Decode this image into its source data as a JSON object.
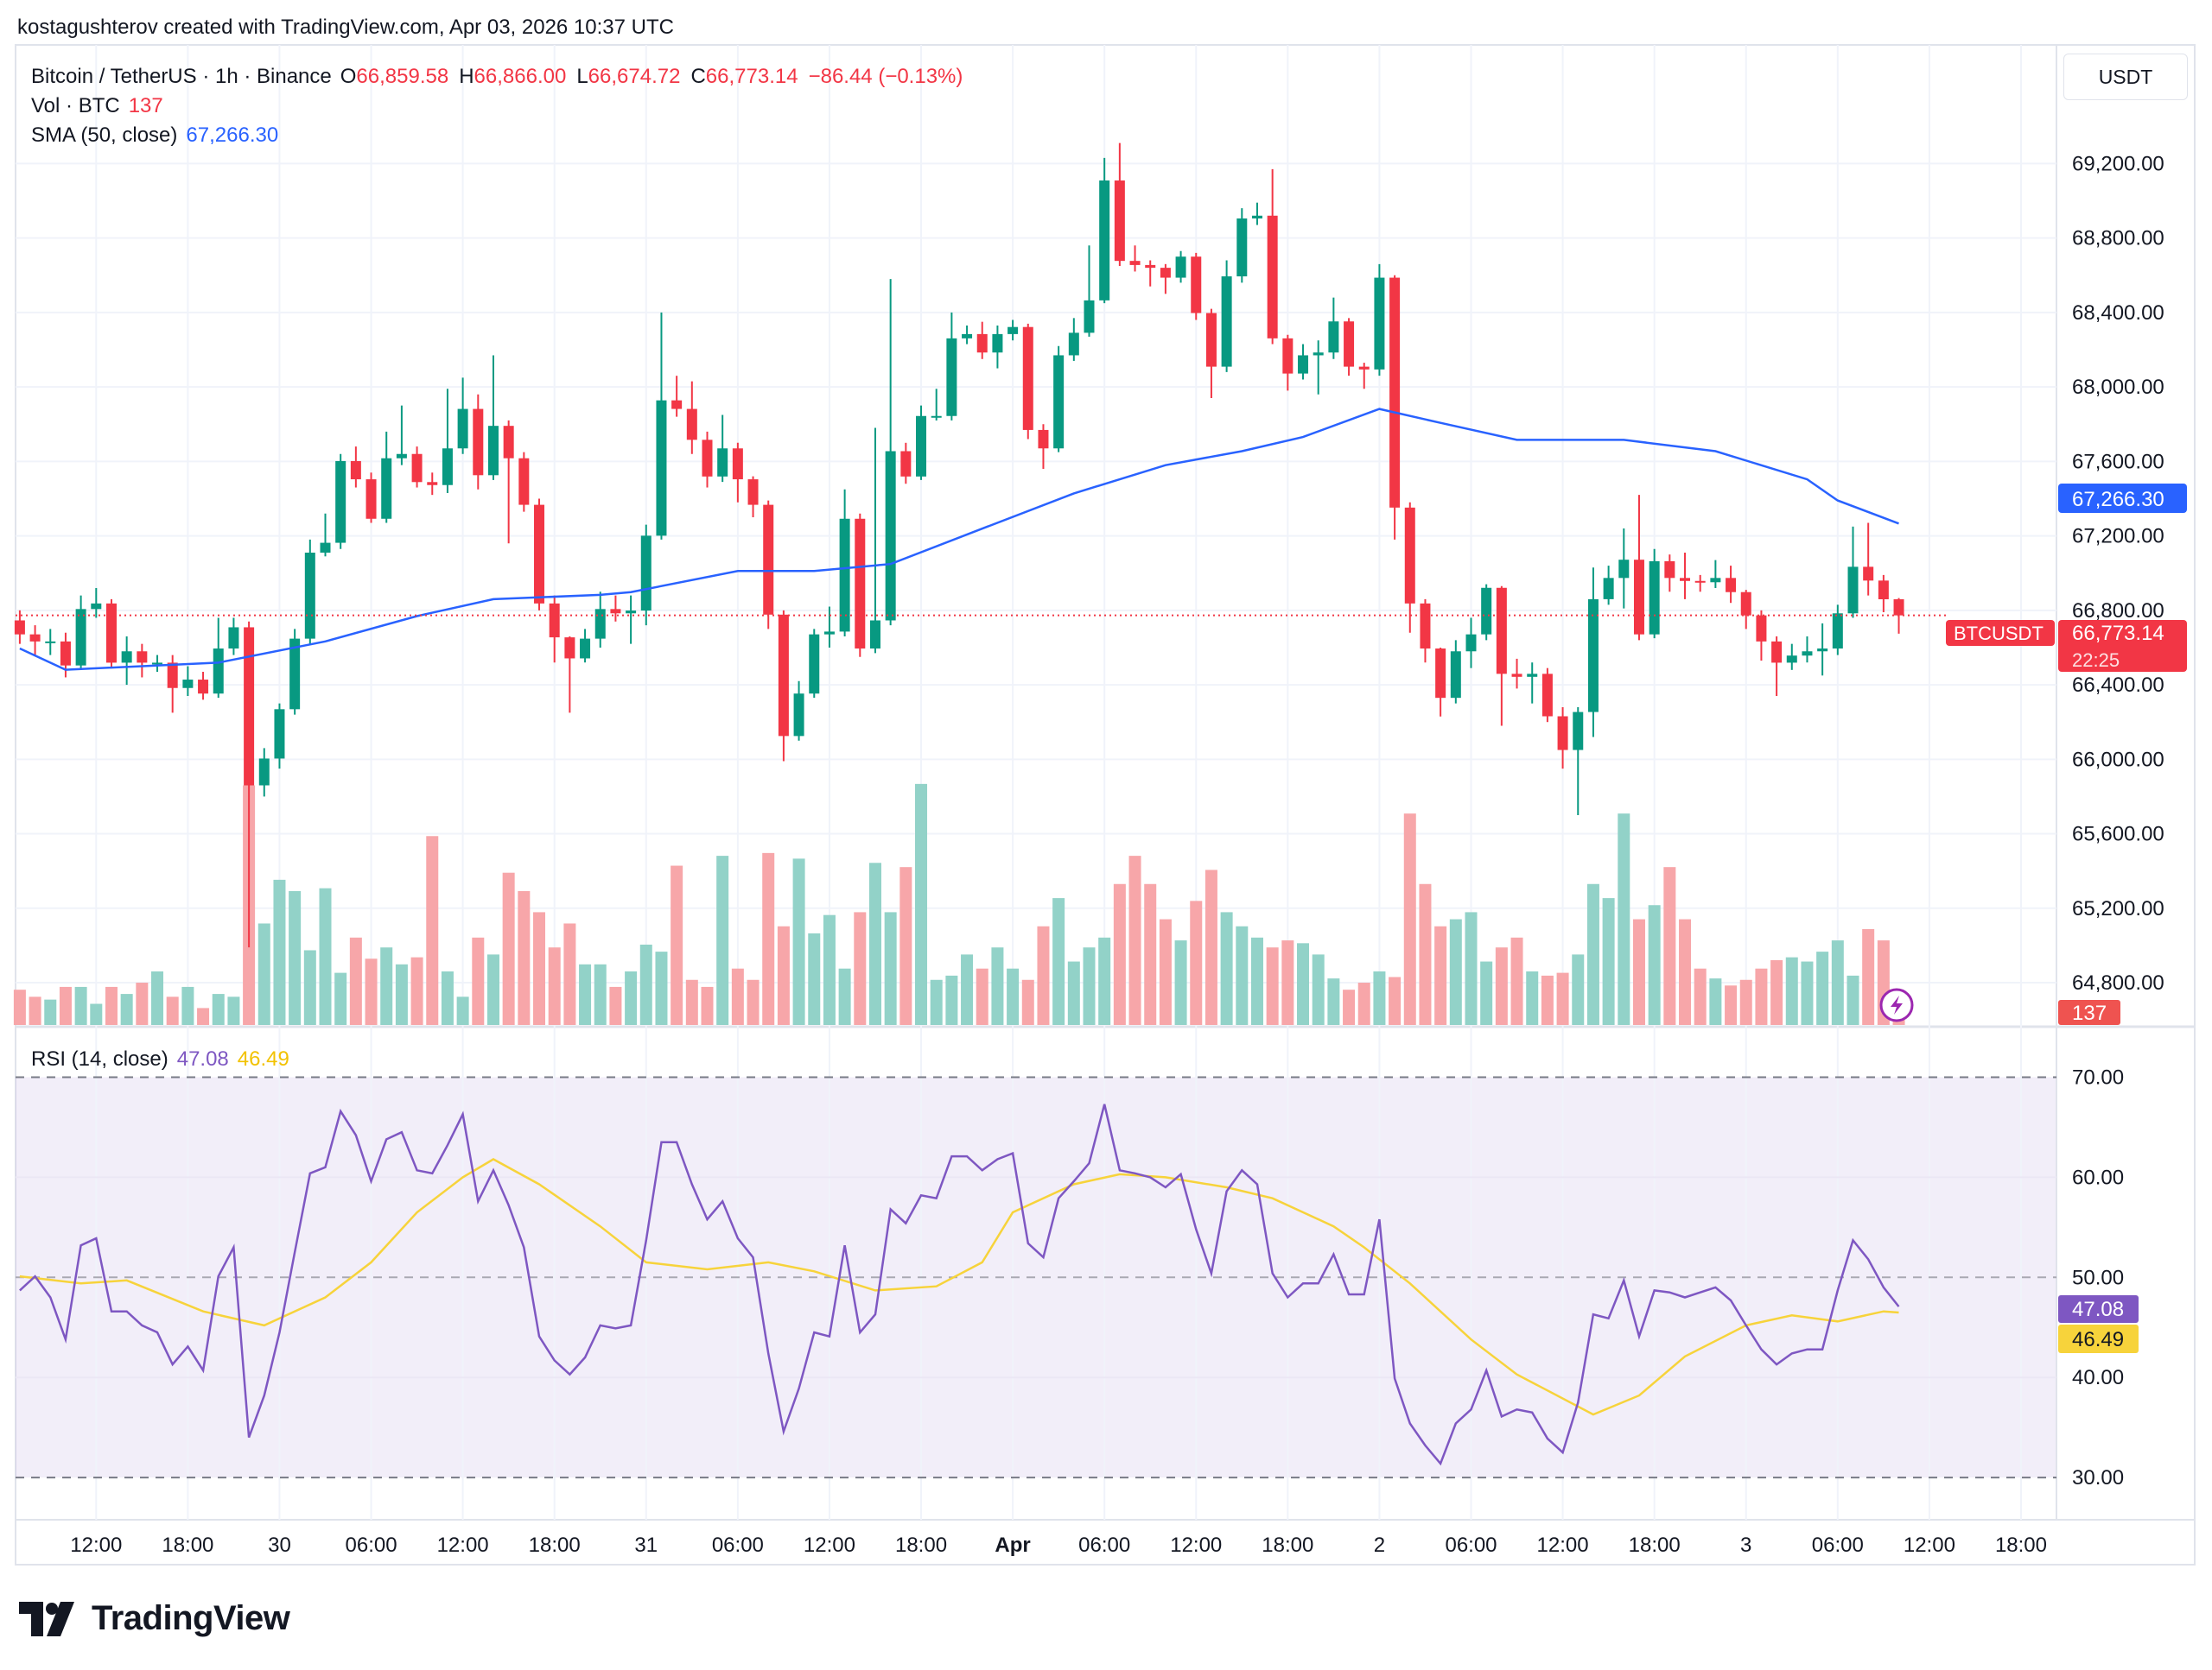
{
  "header": {
    "attribution": "kostagushterov created with TradingView.com, Apr 03, 2026 10:37 UTC",
    "symbol": "Bitcoin / TetherUS · 1h · Binance",
    "open_label": "O",
    "open": "66,859.58",
    "high_label": "H",
    "high": "66,866.00",
    "low_label": "L",
    "low": "66,674.72",
    "close_label": "C",
    "close": "66,773.14",
    "change": "−86.44 (−0.13%)"
  },
  "legends": {
    "volume_label": "Vol · BTC",
    "volume_value": "137",
    "sma_label": "SMA (50, close)",
    "sma_value": "67,266.30",
    "rsi_label": "RSI (14, close)",
    "rsi_value": "47.08",
    "rsi_ma_value": "46.49"
  },
  "currency_button": "USDT",
  "price_labels": {
    "sma_tag": "67,266.30",
    "symbol_tag": "BTCUSDT",
    "last_price": "66,773.14",
    "countdown": "22:25",
    "volume_tag": "137",
    "rsi_tag": "47.08",
    "rsi_ma_tag": "46.49"
  },
  "logo_text": "TradingView",
  "colors": {
    "up": "#089981",
    "down": "#F23645",
    "volume_up": "#92d2c8",
    "volume_down": "#f7a6a9",
    "sma": "#2962FF",
    "rsi": "#7E57C2",
    "rsi_ma": "#F7D33B",
    "rsi_band": "#7E57C2"
  },
  "icons": {
    "lightning": "lightning-icon",
    "logo": "tradingview-logo-icon"
  },
  "chart_data": [
    {
      "type": "candlestick",
      "title": "Bitcoin / TetherUS · 1h · Binance",
      "x_start": "2026-03-29 07:00",
      "interval": "1h",
      "ylim": [
        64500,
        69600
      ],
      "y_ticks": [
        69200,
        68800,
        68400,
        68000,
        67600,
        67200,
        66800,
        66400,
        66000,
        65600,
        65200,
        64800
      ],
      "y_tick_labels": [
        "69,200.00",
        "68,800.00",
        "68,400.00",
        "68,000.00",
        "67,600.00",
        "67,200.00",
        "66,800.00",
        "66,400.00",
        "66,000.00",
        "65,600.00",
        "65,200.00",
        "64,800.00"
      ],
      "x_tick_labels": [
        "12:00",
        "18:00",
        "30",
        "06:00",
        "12:00",
        "18:00",
        "31",
        "06:00",
        "12:00",
        "18:00",
        "Apr",
        "06:00",
        "12:00",
        "18:00",
        "2",
        "06:00",
        "12:00",
        "18:00",
        "3",
        "06:00",
        "12:00",
        "18:00"
      ],
      "x_tick_first": "2026-03-29 12:00",
      "x_tick_step_hours": 6,
      "grid": true,
      "open_first": 66746,
      "close": [
        66671,
        66633,
        66633,
        66504,
        66807,
        66837,
        66519,
        66580,
        66519,
        66519,
        66383,
        66428,
        66353,
        66595,
        66709,
        65860,
        66004,
        66269,
        66648,
        67110,
        67163,
        67602,
        67504,
        67292,
        67617,
        67640,
        67489,
        67473,
        67670,
        67882,
        67526,
        67791,
        67617,
        67367,
        66837,
        66655,
        66542,
        66648,
        66807,
        66784,
        66799,
        67201,
        67928,
        67882,
        67716,
        67519,
        67670,
        67504,
        67367,
        66777,
        66125,
        66353,
        66671,
        66686,
        67292,
        66595,
        66746,
        67655,
        67519,
        67844,
        67844,
        68261,
        68284,
        68185,
        68284,
        68322,
        67769,
        67670,
        68170,
        68291,
        68465,
        69109,
        68677,
        68655,
        68640,
        68587,
        68700,
        68397,
        68109,
        68594,
        68905,
        68920,
        68261,
        68072,
        68170,
        68185,
        68352,
        68109,
        68094,
        68587,
        67352,
        66837,
        66595,
        66330,
        66580,
        66671,
        66921,
        66459,
        66443,
        66459,
        66231,
        66050,
        66254,
        66860,
        66974,
        67072,
        66671,
        67064,
        66974,
        66958,
        66951,
        66974,
        66898,
        66773,
        66633,
        66519,
        66557,
        66580,
        66595,
        66784,
        67034,
        66960,
        66859.58,
        66773.14
      ],
      "high": [
        66800,
        66720,
        66700,
        66680,
        66880,
        66920,
        66860,
        66660,
        66620,
        66560,
        66560,
        66500,
        66470,
        66760,
        66760,
        66740,
        66060,
        66300,
        66700,
        67180,
        67320,
        67640,
        67680,
        67540,
        67760,
        67900,
        67680,
        67540,
        67990,
        68050,
        67960,
        68170,
        67820,
        67650,
        67400,
        66880,
        66660,
        66700,
        66900,
        66880,
        66880,
        67260,
        68400,
        68060,
        68030,
        67760,
        67850,
        67700,
        67520,
        67390,
        66800,
        66420,
        66700,
        66820,
        67450,
        67320,
        67780,
        68580,
        67700,
        67900,
        67990,
        68400,
        68330,
        68350,
        68330,
        68360,
        68340,
        67800,
        68220,
        68370,
        68760,
        69230,
        69310,
        68760,
        68680,
        68660,
        68730,
        68720,
        68420,
        68680,
        68960,
        68990,
        69170,
        68280,
        68230,
        68250,
        68480,
        68370,
        68130,
        68660,
        68600,
        67380,
        66860,
        66600,
        66640,
        66760,
        66940,
        66930,
        66540,
        66520,
        66490,
        66280,
        66280,
        67030,
        67040,
        67240,
        67420,
        67130,
        67100,
        67110,
        66990,
        67070,
        67040,
        66910,
        66800,
        66660,
        66620,
        66660,
        66730,
        66830,
        67250,
        67270,
        66990,
        66866
      ],
      "low": [
        66620,
        66560,
        66560,
        66440,
        66480,
        66760,
        66490,
        66400,
        66440,
        66470,
        66250,
        66340,
        66320,
        66330,
        66560,
        64990,
        65800,
        65950,
        66240,
        66620,
        67090,
        67130,
        67460,
        67270,
        67270,
        67580,
        67460,
        67420,
        67430,
        67640,
        67450,
        67500,
        67160,
        67330,
        66800,
        66520,
        66250,
        66520,
        66600,
        66740,
        66620,
        66720,
        67180,
        67840,
        67640,
        67460,
        67490,
        67380,
        67300,
        66700,
        65990,
        66100,
        66330,
        66600,
        66660,
        66550,
        66570,
        66720,
        67480,
        67500,
        67820,
        67820,
        68230,
        68150,
        68100,
        68250,
        67720,
        67560,
        67650,
        68140,
        68270,
        68450,
        68650,
        68620,
        68540,
        68500,
        68560,
        68360,
        67940,
        68080,
        68560,
        68870,
        68230,
        67980,
        68040,
        67960,
        68150,
        68060,
        67990,
        68060,
        67180,
        66680,
        66520,
        66230,
        66300,
        66490,
        66640,
        66180,
        66380,
        66300,
        66200,
        65950,
        65700,
        66120,
        66830,
        66810,
        66640,
        66650,
        66900,
        66860,
        66900,
        66920,
        66840,
        66700,
        66530,
        66340,
        66480,
        66520,
        66450,
        66560,
        66760,
        66880,
        66790,
        66674.72
      ],
      "volume": [
        350,
        280,
        252,
        378,
        378,
        210,
        378,
        308,
        420,
        532,
        280,
        378,
        168,
        308,
        280,
        2380,
        1008,
        1442,
        1330,
        742,
        1358,
        518,
        868,
        658,
        770,
        602,
        672,
        1876,
        532,
        280,
        868,
        700,
        1512,
        1330,
        1120,
        770,
        1008,
        602,
        602,
        378,
        532,
        798,
        728,
        1582,
        448,
        378,
        1680,
        560,
        448,
        1708,
        980,
        1652,
        910,
        1092,
        560,
        1120,
        1610,
        1120,
        1568,
        2394,
        448,
        490,
        700,
        560,
        770,
        560,
        448,
        980,
        1260,
        630,
        770,
        868,
        1400,
        1680,
        1400,
        1050,
        840,
        1232,
        1540,
        1120,
        980,
        868,
        770,
        840,
        812,
        700,
        462,
        350,
        420,
        532,
        476,
        2100,
        1400,
        980,
        1050,
        1120,
        630,
        770,
        868,
        532,
        490,
        518,
        700,
        1400,
        1260,
        2100,
        1050,
        1190,
        1568,
        1050,
        560,
        462,
        392,
        448,
        560,
        644,
        672,
        630,
        728,
        840,
        490,
        952,
        840,
        137
      ],
      "sma_50": [
        [
          "03-29 07:00",
          66595
        ],
        [
          "03-29 10:00",
          66481
        ],
        [
          "03-29 20:00",
          66519
        ],
        [
          "03-30 03:00",
          66633
        ],
        [
          "03-30 09:00",
          66769
        ],
        [
          "03-30 14:00",
          66860
        ],
        [
          "03-30 21:00",
          66883
        ],
        [
          "03-30 23:00",
          66898
        ],
        [
          "03-31 06:00",
          67011
        ],
        [
          "03-31 11:00",
          67011
        ],
        [
          "03-31 16:00",
          67049
        ],
        [
          "03-31 22:00",
          67239
        ],
        [
          "04-01 04:00",
          67428
        ],
        [
          "04-01 10:00",
          67580
        ],
        [
          "04-01 15:00",
          67655
        ],
        [
          "04-01 19:00",
          67731
        ],
        [
          "04-02 00:00",
          67882
        ],
        [
          "04-02 04:00",
          67807
        ],
        [
          "04-02 09:00",
          67716
        ],
        [
          "04-02 14:00",
          67716
        ],
        [
          "04-02 16:00",
          67716
        ],
        [
          "04-02 22:00",
          67655
        ],
        [
          "04-03 04:00",
          67504
        ],
        [
          "04-03 06:00",
          67390
        ],
        [
          "04-03 10:00",
          67266.3
        ]
      ]
    },
    {
      "type": "line",
      "title": "RSI (14, close)",
      "ylim": [
        25,
        75
      ],
      "y_ticks": [
        70,
        60,
        50,
        40,
        30
      ],
      "y_tick_labels": [
        "70.00",
        "60.00",
        "50.00",
        "40.00",
        "30.00"
      ],
      "band": [
        30,
        70
      ],
      "rsi": [
        48.7,
        50.1,
        48,
        43.8,
        53.2,
        53.9,
        46.6,
        46.6,
        45.2,
        44.5,
        41.3,
        43.1,
        40.7,
        50.1,
        53,
        34,
        38.2,
        44.5,
        52.5,
        60.4,
        61,
        66.6,
        64.2,
        59.6,
        63.8,
        64.5,
        60.7,
        60.4,
        63.2,
        66.3,
        57.6,
        60.7,
        57.2,
        53,
        44.1,
        41.7,
        40.3,
        42,
        45.2,
        44.9,
        45.2,
        53.7,
        63.5,
        63.5,
        59.3,
        55.8,
        57.6,
        53.9,
        52,
        42.4,
        34.6,
        38.9,
        44.5,
        44.1,
        53.2,
        44.5,
        46.3,
        56.8,
        55.4,
        58.2,
        57.9,
        62.1,
        62.1,
        60.7,
        61.8,
        62.4,
        53.4,
        52,
        57.9,
        59.6,
        61.4,
        67.3,
        60.7,
        60.4,
        60,
        59,
        60.3,
        54.8,
        50.4,
        58.6,
        60.7,
        59.3,
        50.4,
        48,
        49.4,
        49.4,
        52.3,
        48.3,
        48.3,
        55.8,
        39.9,
        35.4,
        33.2,
        31.4,
        35.4,
        36.8,
        40.7,
        36.1,
        36.8,
        36.5,
        33.9,
        32.5,
        37.5,
        46.3,
        45.9,
        49.7,
        44.1,
        48.7,
        48.5,
        48,
        48.5,
        49,
        47.7,
        45.2,
        42.8,
        41.3,
        42.4,
        42.8,
        42.8,
        48.7,
        53.7,
        51.8,
        49,
        47.08
      ],
      "rsi_ma": [
        [
          "03-29 07:00",
          50.1
        ],
        [
          "03-29 11:00",
          49.4
        ],
        [
          "03-29 14:00",
          49.7
        ],
        [
          "03-29 19:00",
          46.6
        ],
        [
          "03-29 23:00",
          45.2
        ],
        [
          "03-30 03:00",
          48
        ],
        [
          "03-30 06:00",
          51.5
        ],
        [
          "03-30 09:00",
          56.5
        ],
        [
          "03-30 12:00",
          60
        ],
        [
          "03-30 14:00",
          61.8
        ],
        [
          "03-30 17:00",
          59.3
        ],
        [
          "03-30 21:00",
          55.1
        ],
        [
          "03-31 00:00",
          51.5
        ],
        [
          "03-31 04:00",
          50.8
        ],
        [
          "03-31 08:00",
          51.5
        ],
        [
          "03-31 11:00",
          50.6
        ],
        [
          "03-31 15:00",
          48.7
        ],
        [
          "03-31 19:00",
          49.1
        ],
        [
          "03-31 22:00",
          51.5
        ],
        [
          "04-01 00:00",
          56.5
        ],
        [
          "04-01 04:00",
          59.3
        ],
        [
          "04-01 07:00",
          60.3
        ],
        [
          "04-01 10:00",
          60
        ],
        [
          "04-01 14:00",
          59
        ],
        [
          "04-01 17:00",
          57.9
        ],
        [
          "04-01 21:00",
          55.1
        ],
        [
          "04-01 23:00",
          53
        ],
        [
          "04-02 02:00",
          49.4
        ],
        [
          "04-02 06:00",
          43.8
        ],
        [
          "04-02 09:00",
          40.3
        ],
        [
          "04-02 14:00",
          36.3
        ],
        [
          "04-02 17:00",
          38.2
        ],
        [
          "04-02 20:00",
          42.1
        ],
        [
          "04-03 00:00",
          45.2
        ],
        [
          "04-03 03:00",
          46.2
        ],
        [
          "04-03 06:00",
          45.6
        ],
        [
          "04-03 09:00",
          46.6
        ],
        [
          "04-03 10:00",
          46.49
        ]
      ]
    }
  ]
}
